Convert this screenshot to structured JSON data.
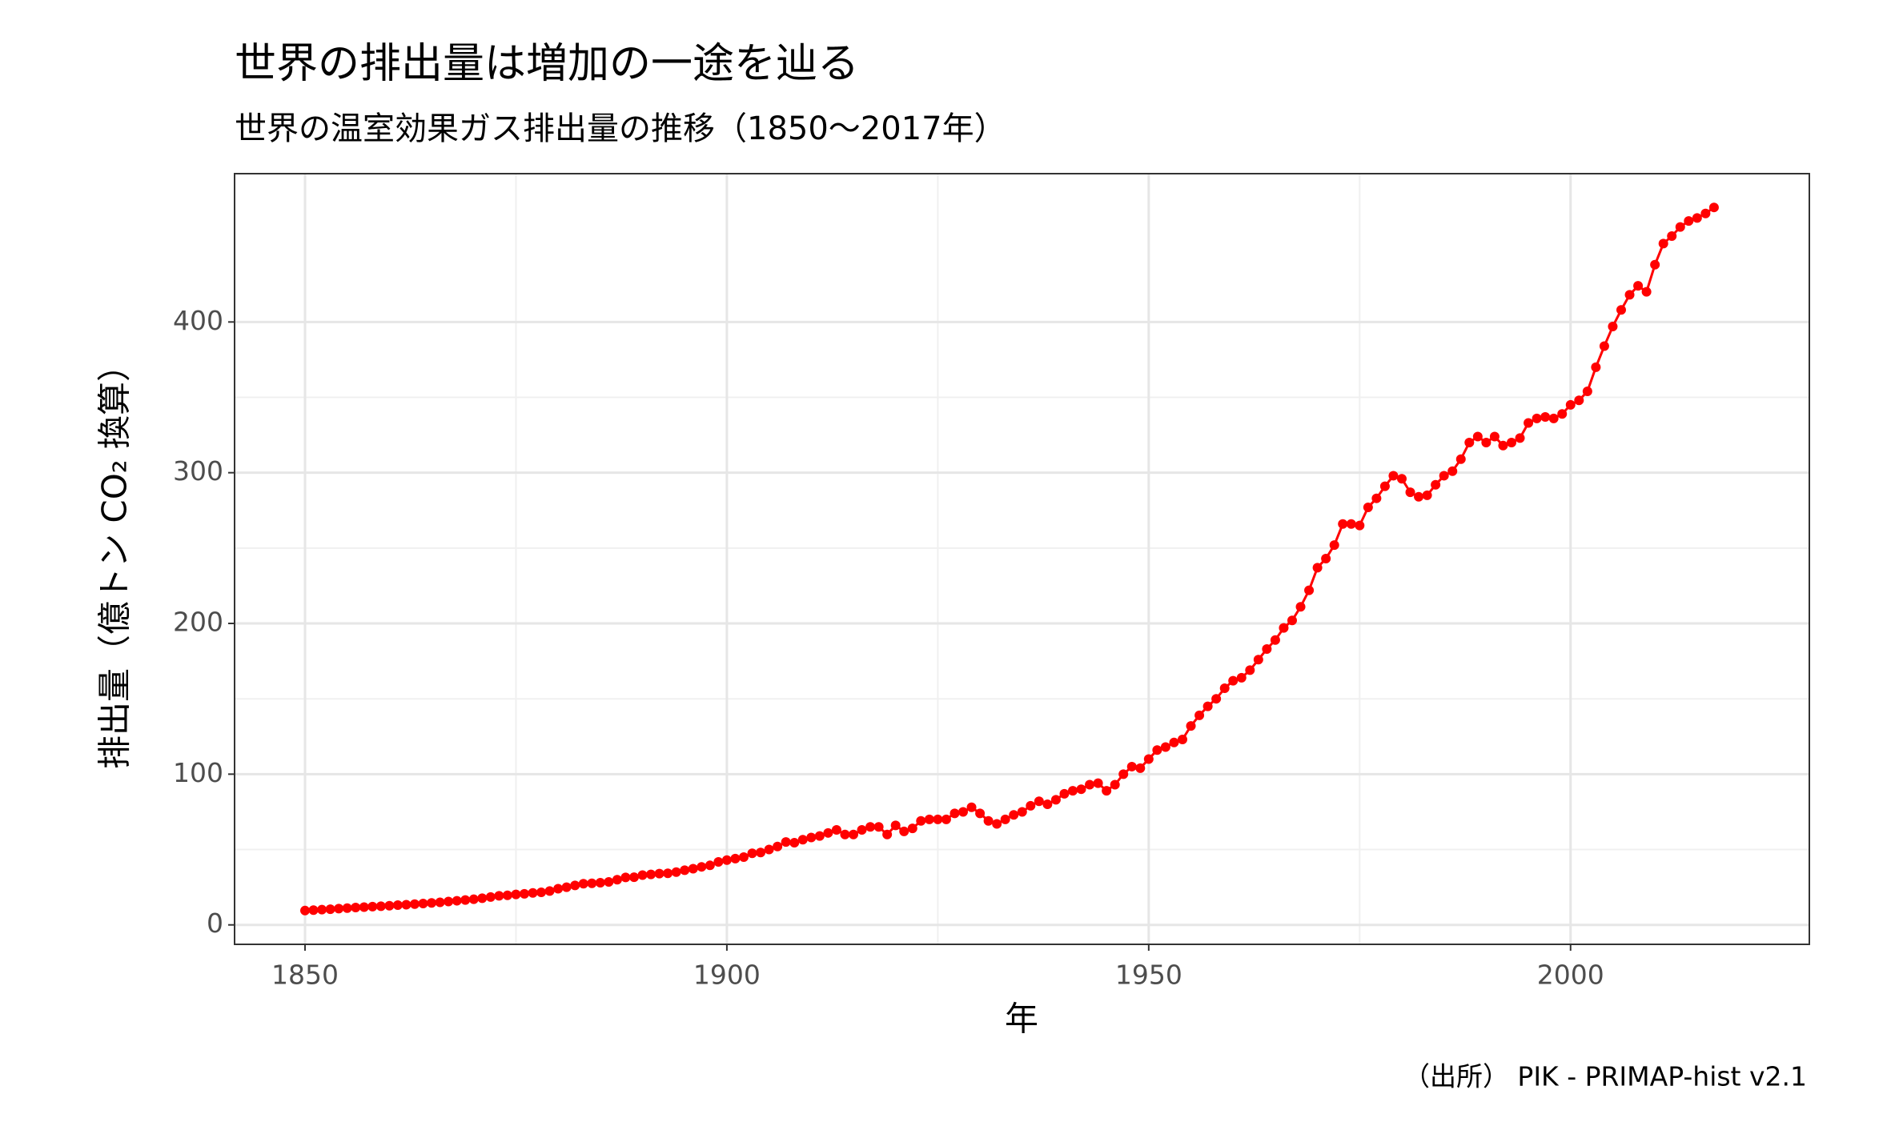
{
  "chart_data": {
    "type": "line",
    "title": "世界の排出量は増加の一途を辿る",
    "subtitle": "世界の温室効果ガス排出量の推移（1850〜2017年）",
    "x_label": "年",
    "y_label": "排出量（億トン CO₂ 換算）",
    "caption": "（出所） PIK - PRIMAP-hist v2.1",
    "x": [
      1850,
      1851,
      1852,
      1853,
      1854,
      1855,
      1856,
      1857,
      1858,
      1859,
      1860,
      1861,
      1862,
      1863,
      1864,
      1865,
      1866,
      1867,
      1868,
      1869,
      1870,
      1871,
      1872,
      1873,
      1874,
      1875,
      1876,
      1877,
      1878,
      1879,
      1880,
      1881,
      1882,
      1883,
      1884,
      1885,
      1886,
      1887,
      1888,
      1889,
      1890,
      1891,
      1892,
      1893,
      1894,
      1895,
      1896,
      1897,
      1898,
      1899,
      1900,
      1901,
      1902,
      1903,
      1904,
      1905,
      1906,
      1907,
      1908,
      1909,
      1910,
      1911,
      1912,
      1913,
      1914,
      1915,
      1916,
      1917,
      1918,
      1919,
      1920,
      1921,
      1922,
      1923,
      1924,
      1925,
      1926,
      1927,
      1928,
      1929,
      1930,
      1931,
      1932,
      1933,
      1934,
      1935,
      1936,
      1937,
      1938,
      1939,
      1940,
      1941,
      1942,
      1943,
      1944,
      1945,
      1946,
      1947,
      1948,
      1949,
      1950,
      1951,
      1952,
      1953,
      1954,
      1955,
      1956,
      1957,
      1958,
      1959,
      1960,
      1961,
      1962,
      1963,
      1964,
      1965,
      1966,
      1967,
      1968,
      1969,
      1970,
      1971,
      1972,
      1973,
      1974,
      1975,
      1976,
      1977,
      1978,
      1979,
      1980,
      1981,
      1982,
      1983,
      1984,
      1985,
      1986,
      1987,
      1988,
      1989,
      1990,
      1991,
      1992,
      1993,
      1994,
      1995,
      1996,
      1997,
      1998,
      1999,
      2000,
      2001,
      2002,
      2003,
      2004,
      2005,
      2006,
      2007,
      2008,
      2009,
      2010,
      2011,
      2012,
      2013,
      2014,
      2015,
      2016,
      2017
    ],
    "series": [
      {
        "color": "#ff0000",
        "values": [
          9.5,
          9.8,
          10.1,
          10.4,
          10.8,
          11.1,
          11.5,
          11.8,
          12.1,
          12.4,
          12.7,
          13.1,
          13.4,
          13.8,
          14.2,
          14.6,
          15.0,
          15.5,
          16.0,
          16.5,
          17.0,
          17.7,
          18.5,
          19.3,
          19.6,
          20.2,
          20.6,
          21.2,
          21.6,
          22.5,
          24.0,
          25.0,
          26.2,
          27.3,
          27.6,
          28.0,
          28.5,
          30.0,
          31.5,
          31.6,
          33.0,
          33.5,
          34.0,
          34.2,
          35.0,
          36.3,
          37.3,
          38.5,
          39.5,
          41.8,
          43.0,
          44.0,
          45.0,
          47.5,
          48.0,
          50.0,
          52.0,
          55.0,
          54.5,
          56.5,
          58,
          59,
          61,
          63,
          60,
          60,
          63,
          65,
          65,
          60,
          66,
          62,
          64,
          69,
          70,
          70,
          70,
          74,
          75,
          78,
          74,
          69,
          67,
          70,
          73,
          75,
          79,
          82,
          80,
          83,
          87,
          89,
          90,
          93,
          94,
          89,
          93,
          100,
          105,
          104,
          110,
          116,
          118,
          121,
          123,
          132,
          139,
          145,
          150,
          157,
          162,
          164,
          169,
          176,
          183,
          189,
          197,
          202,
          211,
          222,
          237,
          243,
          252,
          266,
          266,
          265,
          277,
          283,
          291,
          298,
          296,
          287,
          284,
          285,
          292,
          298,
          301,
          309,
          320,
          324,
          320,
          324,
          318,
          320,
          323,
          333,
          336,
          337,
          336,
          339,
          345,
          348,
          354,
          370,
          384,
          397,
          408,
          418,
          424,
          420,
          438,
          452,
          457,
          463,
          467,
          469,
          472,
          476
        ]
      }
    ],
    "xlim": [
      1841.65,
      2028.3
    ],
    "xticks": [
      1850,
      1900,
      1950,
      2000
    ],
    "ylim": [
      -12.9,
      498.4
    ],
    "yticks": [
      0,
      100,
      200,
      300,
      400
    ],
    "grid": true
  }
}
